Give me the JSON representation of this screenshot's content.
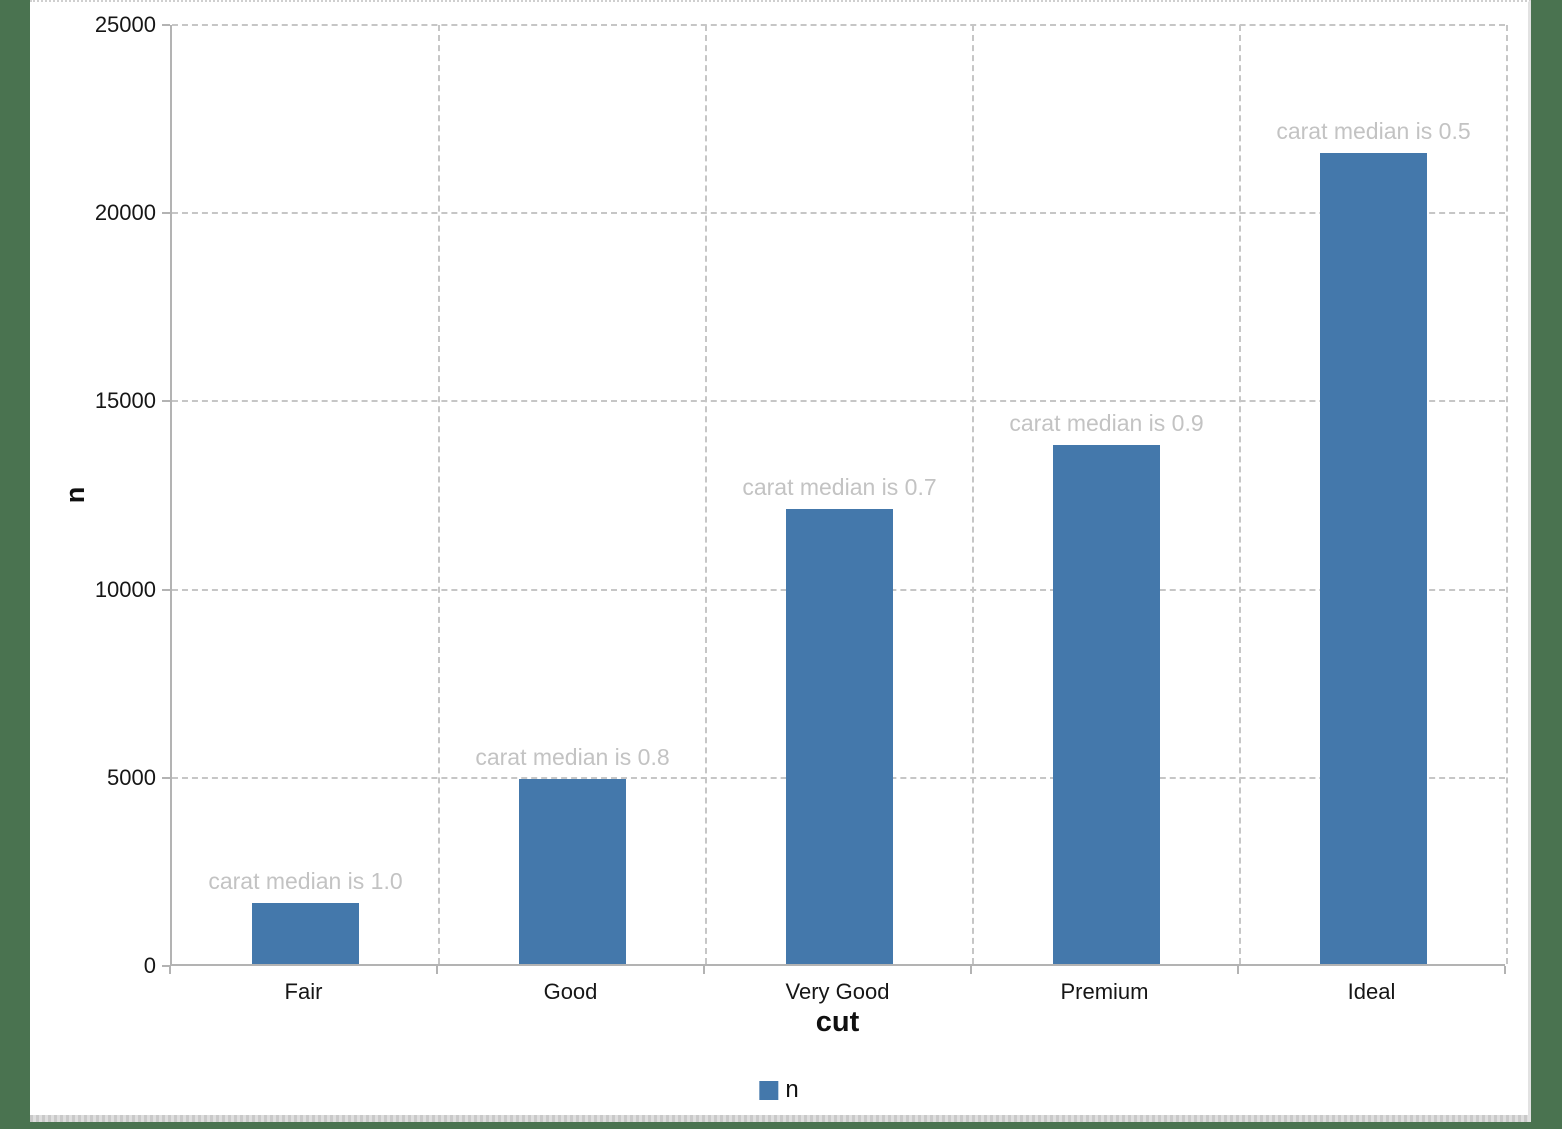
{
  "page": {
    "background_color": "#4a7350",
    "panel_color": "#ffffff"
  },
  "chart_data": {
    "type": "bar",
    "title": "",
    "categories": [
      "Fair",
      "Good",
      "Very Good",
      "Premium",
      "Ideal"
    ],
    "series": [
      {
        "name": "n",
        "values": [
          1610,
          4906,
          12082,
          13791,
          21551
        ]
      }
    ],
    "annotations": [
      "carat median is 1.0",
      "carat median is 0.8",
      "carat median is 0.7",
      "carat median is 0.9",
      "carat median is 0.5"
    ],
    "xlabel": "cut",
    "ylabel": "n",
    "ylim": [
      0,
      25000
    ],
    "yticks": [
      0,
      5000,
      10000,
      15000,
      20000,
      25000
    ],
    "grid": "dashed-gray",
    "legend": {
      "position": "bottom",
      "label": "n"
    },
    "bar_color": "#4478ab",
    "annotation_color": "#c3c3c3",
    "gridline_color": "#c6c6c6",
    "axis_line_color": "#b3b3b3",
    "tick_label_color": "#161616"
  }
}
